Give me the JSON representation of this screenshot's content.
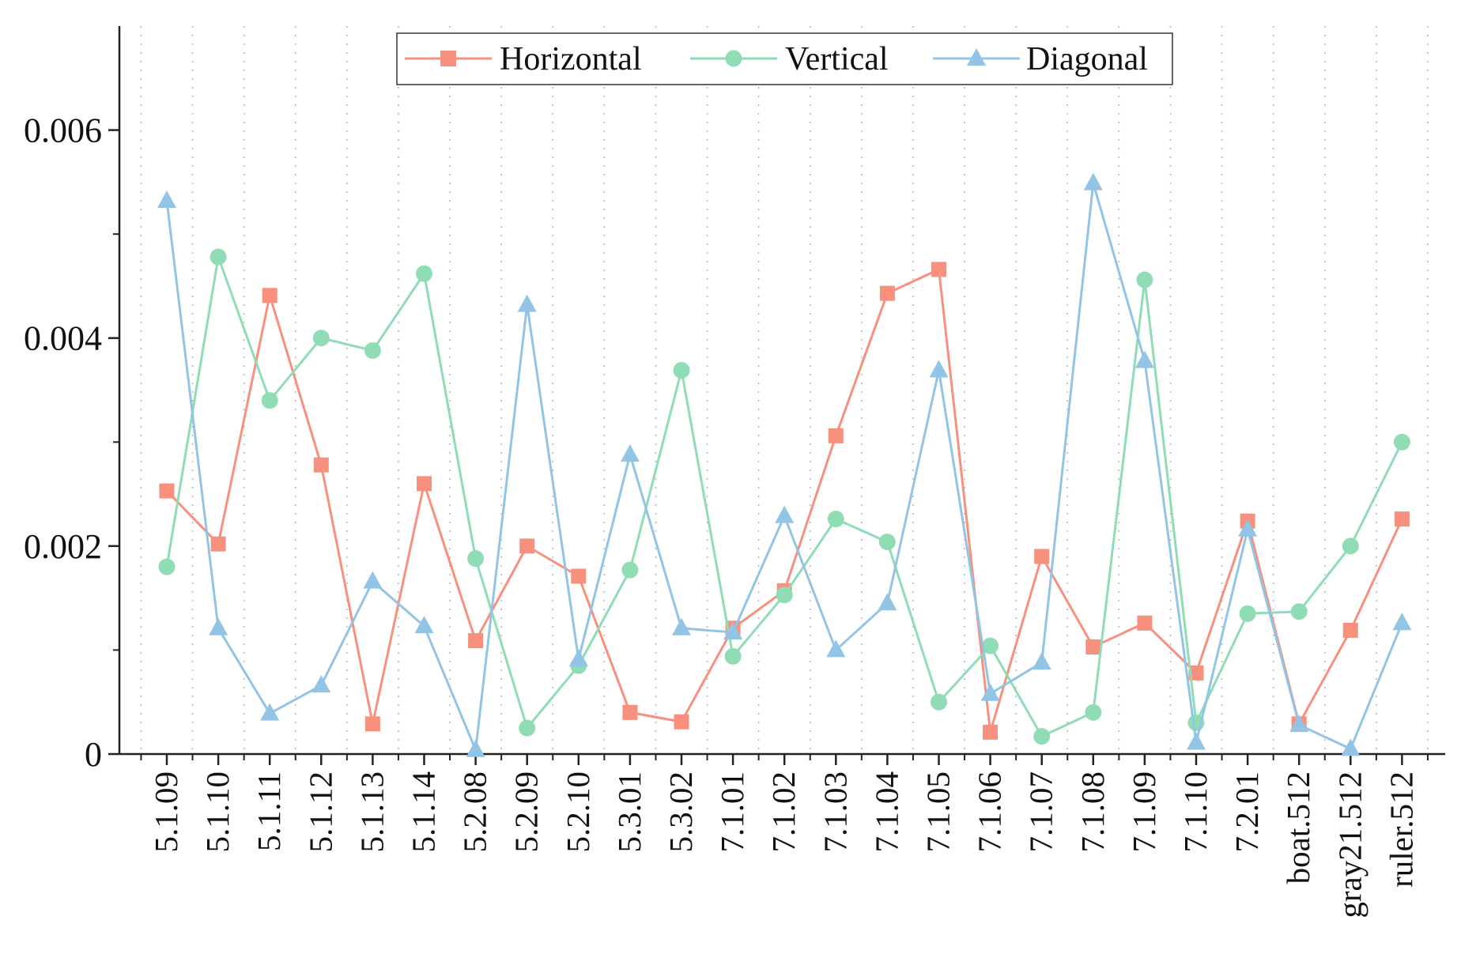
{
  "chart_data": {
    "type": "line",
    "title": "",
    "xlabel": "",
    "ylabel": "",
    "ylim": [
      0,
      0.007
    ],
    "yticks": [
      0,
      0.002,
      0.004,
      0.006
    ],
    "ytick_labels": [
      "0",
      "0.002",
      "0.004",
      "0.006"
    ],
    "grid": "vertical dotted",
    "legend_position": "top-center",
    "categories": [
      "5.1.09",
      "5.1.10",
      "5.1.11",
      "5.1.12",
      "5.1.13",
      "5.1.14",
      "5.2.08",
      "5.2.09",
      "5.2.10",
      "5.3.01",
      "5.3.02",
      "7.1.01",
      "7.1.02",
      "7.1.03",
      "7.1.04",
      "7.1.05",
      "7.1.06",
      "7.1.07",
      "7.1.08",
      "7.1.09",
      "7.1.10",
      "7.2.01",
      "boat.512",
      "gray21.512",
      "ruler.512"
    ],
    "series": [
      {
        "name": "Horizontal",
        "color": "#f7907c",
        "marker": "square",
        "values": [
          0.00253,
          0.00202,
          0.00441,
          0.00278,
          0.00029,
          0.0026,
          0.00109,
          0.002,
          0.00171,
          0.0004,
          0.00031,
          0.00121,
          0.00157,
          0.00306,
          0.00443,
          0.00466,
          0.00021,
          0.0019,
          0.00103,
          0.00126,
          0.00078,
          0.00224,
          0.00029,
          0.00119,
          0.00226
        ]
      },
      {
        "name": "Vertical",
        "color": "#8fdcb5",
        "marker": "circle",
        "values": [
          0.0018,
          0.00478,
          0.0034,
          0.004,
          0.00388,
          0.00462,
          0.00188,
          0.00025,
          0.00085,
          0.00177,
          0.00369,
          0.00094,
          0.00153,
          0.00226,
          0.00204,
          0.0005,
          0.00104,
          0.00017,
          0.0004,
          0.00456,
          0.0003,
          0.00135,
          0.00137,
          0.002,
          0.003
        ]
      },
      {
        "name": "Diagonal",
        "color": "#92c4e6",
        "marker": "triangle",
        "values": [
          0.00532,
          0.00121,
          0.00039,
          0.00066,
          0.00166,
          0.00123,
          4e-05,
          0.00432,
          0.00091,
          0.00288,
          0.00121,
          0.00117,
          0.00229,
          0.001,
          0.00145,
          0.00369,
          0.00058,
          0.00088,
          0.00549,
          0.00378,
          0.00011,
          0.00216,
          0.00028,
          5e-05,
          0.00126
        ]
      }
    ]
  }
}
